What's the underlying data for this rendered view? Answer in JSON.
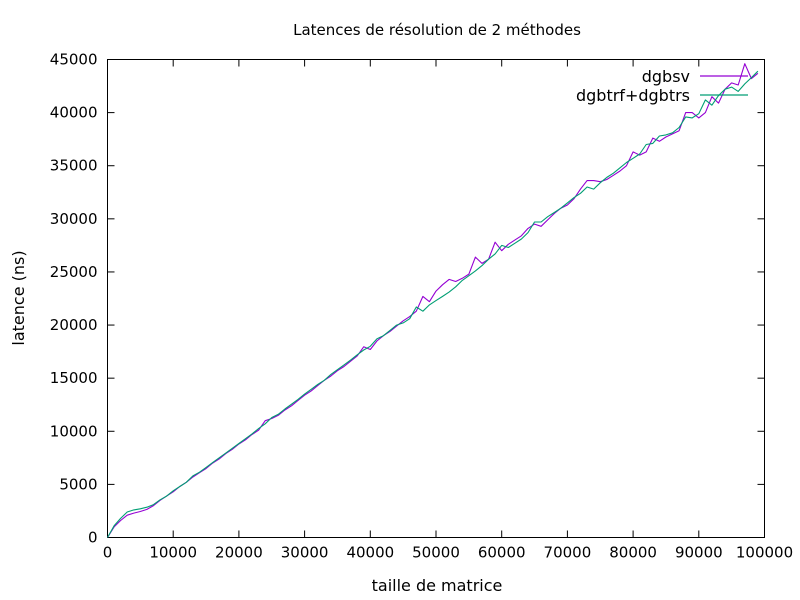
{
  "chart_data": {
    "type": "line",
    "title": "Latences de résolution de 2 méthodes",
    "xlabel": "taille de matrice",
    "ylabel": "latence (ns)",
    "xlim": [
      0,
      100000
    ],
    "ylim": [
      0,
      45000
    ],
    "xticks": [
      "0",
      "10000",
      "20000",
      "30000",
      "40000",
      "50000",
      "60000",
      "70000",
      "80000",
      "90000",
      "100000"
    ],
    "yticks": [
      "0",
      "5000",
      "10000",
      "15000",
      "20000",
      "25000",
      "30000",
      "35000",
      "40000",
      "45000"
    ],
    "grid": false,
    "legend_position": "top-right",
    "x": [
      0,
      1000,
      2000,
      3000,
      4000,
      5000,
      6000,
      7000,
      8000,
      9000,
      10000,
      11000,
      12000,
      13000,
      14000,
      15000,
      16000,
      17000,
      18000,
      19000,
      20000,
      21000,
      22000,
      23000,
      24000,
      25000,
      26000,
      27000,
      28000,
      29000,
      30000,
      31000,
      32000,
      33000,
      34000,
      35000,
      36000,
      37000,
      38000,
      39000,
      40000,
      41000,
      42000,
      43000,
      44000,
      45000,
      46000,
      47000,
      48000,
      49000,
      50000,
      51000,
      52000,
      53000,
      54000,
      55000,
      56000,
      57000,
      58000,
      59000,
      60000,
      61000,
      62000,
      63000,
      64000,
      65000,
      66000,
      67000,
      68000,
      69000,
      70000,
      71000,
      72000,
      73000,
      74000,
      75000,
      76000,
      77000,
      78000,
      79000,
      80000,
      81000,
      82000,
      83000,
      84000,
      85000,
      86000,
      87000,
      88000,
      89000,
      90000,
      91000,
      92000,
      93000,
      94000,
      95000,
      96000,
      97000,
      98000,
      99000
    ],
    "series": [
      {
        "name": "dgbsv",
        "color": "#9400d3",
        "values": [
          0,
          1000,
          1600,
          2100,
          2300,
          2450,
          2650,
          3000,
          3500,
          3900,
          4300,
          4800,
          5200,
          5700,
          6100,
          6500,
          7000,
          7400,
          7900,
          8300,
          8800,
          9200,
          9700,
          10100,
          11000,
          11200,
          11500,
          12000,
          12400,
          12900,
          13400,
          13800,
          14300,
          14800,
          15200,
          15700,
          16100,
          16600,
          17100,
          17950,
          17700,
          18500,
          19000,
          19400,
          19900,
          20400,
          20800,
          21300,
          22700,
          22200,
          23200,
          23800,
          24300,
          24100,
          24400,
          24800,
          26400,
          25800,
          26200,
          27800,
          27000,
          27600,
          28000,
          28400,
          29100,
          29500,
          29300,
          29900,
          30500,
          31000,
          31300,
          31900,
          32800,
          33600,
          33600,
          33500,
          33700,
          34100,
          34500,
          35000,
          36300,
          36000,
          36300,
          37600,
          37300,
          37700,
          38000,
          38300,
          40000,
          40000,
          39500,
          40000,
          41500,
          40900,
          42200,
          42800,
          42600,
          44600,
          43200,
          43700
        ]
      },
      {
        "name": "dgbtrf+dgbtrs",
        "color": "#009e73",
        "values": [
          0,
          1100,
          1800,
          2400,
          2600,
          2700,
          2850,
          3100,
          3550,
          3900,
          4400,
          4800,
          5200,
          5800,
          6150,
          6600,
          7050,
          7500,
          7950,
          8400,
          8850,
          9300,
          9750,
          10250,
          10700,
          11300,
          11600,
          12100,
          12550,
          13000,
          13500,
          13950,
          14400,
          14800,
          15350,
          15800,
          16250,
          16700,
          17200,
          17650,
          18000,
          18700,
          19000,
          19500,
          20000,
          20200,
          20600,
          21700,
          21300,
          21900,
          22300,
          22700,
          23100,
          23600,
          24200,
          24650,
          25100,
          25600,
          26200,
          26700,
          27500,
          27300,
          27700,
          28100,
          28700,
          29700,
          29700,
          30200,
          30600,
          31000,
          31500,
          32000,
          32400,
          33000,
          32800,
          33400,
          33900,
          34300,
          34800,
          35300,
          35700,
          36100,
          37000,
          37100,
          37800,
          37900,
          38100,
          38600,
          39600,
          39500,
          39900,
          41200,
          40700,
          41600,
          42200,
          42400,
          42000,
          42700,
          43300,
          43900
        ]
      }
    ]
  }
}
